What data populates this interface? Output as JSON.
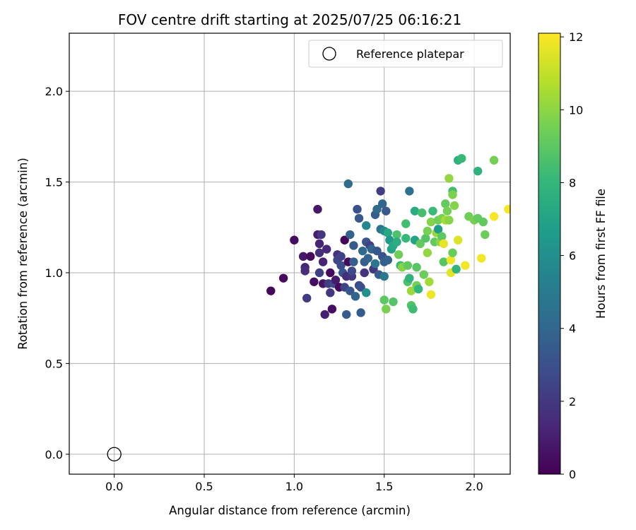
{
  "chart_data": {
    "type": "scatter",
    "title": "FOV centre drift starting at 2025/07/25 06:16:21",
    "xlabel": "Angular distance from reference (arcmin)",
    "ylabel": "Rotation from reference (arcmin)",
    "xlim": [
      -0.25,
      2.2
    ],
    "ylim": [
      -0.11,
      2.32
    ],
    "xticks": [
      0.0,
      0.5,
      1.0,
      1.5,
      2.0
    ],
    "xtick_labels": [
      "0.0",
      "0.5",
      "1.0",
      "1.5",
      "2.0"
    ],
    "yticks": [
      0.0,
      0.5,
      1.0,
      1.5,
      2.0
    ],
    "ytick_labels": [
      "0.0",
      "0.5",
      "1.0",
      "1.5",
      "2.0"
    ],
    "grid": true,
    "legend": {
      "position": "top-right",
      "entries": [
        "Reference platepar"
      ]
    },
    "reference_point": {
      "label": "Reference platepar",
      "x": 0.0,
      "y": 0.0,
      "marker": "open-circle"
    },
    "colorbar": {
      "label": "Hours from first FF file",
      "range": [
        0,
        12.1
      ],
      "ticks": [
        0,
        2,
        4,
        6,
        8,
        10,
        12
      ],
      "tick_labels": [
        "0",
        "2",
        "4",
        "6",
        "8",
        "10",
        "12"
      ],
      "colormap": "viridis",
      "stops": [
        "#440154",
        "#482878",
        "#3e4989",
        "#31688e",
        "#26828e",
        "#1f9e89",
        "#35b779",
        "#6ece58",
        "#b5de2b",
        "#fde725"
      ]
    },
    "points": [
      {
        "x": 0.87,
        "y": 0.9,
        "h": 0.2
      },
      {
        "x": 0.94,
        "y": 0.97,
        "h": 0.3
      },
      {
        "x": 1.0,
        "y": 1.18,
        "h": 0.4
      },
      {
        "x": 1.05,
        "y": 1.09,
        "h": 0.8
      },
      {
        "x": 1.06,
        "y": 1.03,
        "h": 1.3
      },
      {
        "x": 1.06,
        "y": 1.01,
        "h": 1.6
      },
      {
        "x": 1.07,
        "y": 0.86,
        "h": 2.1
      },
      {
        "x": 1.09,
        "y": 1.09,
        "h": 0.3
      },
      {
        "x": 1.11,
        "y": 0.95,
        "h": 0.4
      },
      {
        "x": 1.13,
        "y": 1.35,
        "h": 0.8
      },
      {
        "x": 1.13,
        "y": 1.21,
        "h": 0.9
      },
      {
        "x": 1.14,
        "y": 1.16,
        "h": 1.2
      },
      {
        "x": 1.15,
        "y": 1.21,
        "h": 2.0
      },
      {
        "x": 1.14,
        "y": 1.11,
        "h": 1.6
      },
      {
        "x": 1.14,
        "y": 1.0,
        "h": 2.3
      },
      {
        "x": 1.16,
        "y": 1.06,
        "h": 1.2
      },
      {
        "x": 1.16,
        "y": 0.94,
        "h": 0.7
      },
      {
        "x": 1.17,
        "y": 0.77,
        "h": 1.1
      },
      {
        "x": 1.18,
        "y": 1.13,
        "h": 1.4
      },
      {
        "x": 1.19,
        "y": 0.94,
        "h": 2.2
      },
      {
        "x": 1.2,
        "y": 0.89,
        "h": 1.9
      },
      {
        "x": 1.2,
        "y": 1.0,
        "h": 0.3
      },
      {
        "x": 1.21,
        "y": 0.8,
        "h": 0.4
      },
      {
        "x": 1.22,
        "y": 0.94,
        "h": 2.8
      },
      {
        "x": 1.23,
        "y": 0.96,
        "h": 0.9
      },
      {
        "x": 1.24,
        "y": 1.1,
        "h": 1.7
      },
      {
        "x": 1.24,
        "y": 1.07,
        "h": 2.6
      },
      {
        "x": 1.25,
        "y": 0.92,
        "h": 0.3
      },
      {
        "x": 1.26,
        "y": 1.09,
        "h": 2.4
      },
      {
        "x": 1.26,
        "y": 1.04,
        "h": 2.9
      },
      {
        "x": 1.27,
        "y": 1.0,
        "h": 3.1
      },
      {
        "x": 1.28,
        "y": 1.18,
        "h": 0.2
      },
      {
        "x": 1.28,
        "y": 0.92,
        "h": 2.5
      },
      {
        "x": 1.29,
        "y": 0.77,
        "h": 3.5
      },
      {
        "x": 1.29,
        "y": 0.98,
        "h": 1.5
      },
      {
        "x": 1.3,
        "y": 1.49,
        "h": 4.3
      },
      {
        "x": 1.3,
        "y": 1.06,
        "h": 0.3
      },
      {
        "x": 1.31,
        "y": 1.21,
        "h": 3.8
      },
      {
        "x": 1.31,
        "y": 0.9,
        "h": 3.2
      },
      {
        "x": 1.32,
        "y": 0.98,
        "h": 2.0
      },
      {
        "x": 1.32,
        "y": 1.01,
        "h": 2.7
      },
      {
        "x": 1.33,
        "y": 1.15,
        "h": 3.4
      },
      {
        "x": 1.33,
        "y": 1.06,
        "h": 3.6
      },
      {
        "x": 1.34,
        "y": 0.87,
        "h": 3.9
      },
      {
        "x": 1.35,
        "y": 1.35,
        "h": 3.1
      },
      {
        "x": 1.36,
        "y": 0.93,
        "h": 2.6
      },
      {
        "x": 1.36,
        "y": 1.3,
        "h": 3.3
      },
      {
        "x": 1.37,
        "y": 0.78,
        "h": 3.5
      },
      {
        "x": 1.37,
        "y": 0.92,
        "h": 3.0
      },
      {
        "x": 1.38,
        "y": 1.12,
        "h": 4.1
      },
      {
        "x": 1.39,
        "y": 1.0,
        "h": 1.8
      },
      {
        "x": 1.39,
        "y": 1.06,
        "h": 3.6
      },
      {
        "x": 1.4,
        "y": 1.26,
        "h": 5.6
      },
      {
        "x": 1.4,
        "y": 1.17,
        "h": 3.2
      },
      {
        "x": 1.4,
        "y": 0.89,
        "h": 6.1
      },
      {
        "x": 1.41,
        "y": 1.08,
        "h": 3.8
      },
      {
        "x": 1.42,
        "y": 1.15,
        "h": 2.4
      },
      {
        "x": 1.43,
        "y": 1.13,
        "h": 4.0
      },
      {
        "x": 1.44,
        "y": 1.02,
        "h": 1.9
      },
      {
        "x": 1.45,
        "y": 1.05,
        "h": 4.7
      },
      {
        "x": 1.45,
        "y": 1.32,
        "h": 3.7
      },
      {
        "x": 1.46,
        "y": 1.35,
        "h": 4.2
      },
      {
        "x": 1.46,
        "y": 1.12,
        "h": 3.3
      },
      {
        "x": 1.47,
        "y": 0.99,
        "h": 3.5
      },
      {
        "x": 1.48,
        "y": 1.45,
        "h": 2.2
      },
      {
        "x": 1.48,
        "y": 1.24,
        "h": 4.6
      },
      {
        "x": 1.49,
        "y": 1.09,
        "h": 3.1
      },
      {
        "x": 1.49,
        "y": 1.38,
        "h": 3.9
      },
      {
        "x": 1.5,
        "y": 1.23,
        "h": 5.8
      },
      {
        "x": 1.5,
        "y": 0.98,
        "h": 4.8
      },
      {
        "x": 1.5,
        "y": 1.06,
        "h": 3.6
      },
      {
        "x": 1.51,
        "y": 1.34,
        "h": 3.4
      },
      {
        "x": 1.52,
        "y": 1.07,
        "h": 3.8
      },
      {
        "x": 1.52,
        "y": 1.22,
        "h": 7.2
      },
      {
        "x": 1.53,
        "y": 1.18,
        "h": 6.5
      },
      {
        "x": 1.54,
        "y": 1.13,
        "h": 6.9
      },
      {
        "x": 1.55,
        "y": 1.15,
        "h": 7.3
      },
      {
        "x": 1.5,
        "y": 0.85,
        "h": 9.0
      },
      {
        "x": 1.51,
        "y": 0.8,
        "h": 9.6
      },
      {
        "x": 1.55,
        "y": 0.84,
        "h": 8.8
      },
      {
        "x": 1.57,
        "y": 1.21,
        "h": 8.6
      },
      {
        "x": 1.57,
        "y": 1.17,
        "h": 7.6
      },
      {
        "x": 1.58,
        "y": 1.1,
        "h": 9.4
      },
      {
        "x": 1.59,
        "y": 1.04,
        "h": 8.2
      },
      {
        "x": 1.6,
        "y": 1.03,
        "h": 9.9
      },
      {
        "x": 1.62,
        "y": 1.27,
        "h": 8.4
      },
      {
        "x": 1.62,
        "y": 1.19,
        "h": 8.1
      },
      {
        "x": 1.63,
        "y": 0.95,
        "h": 8.6
      },
      {
        "x": 1.63,
        "y": 1.04,
        "h": 9.1
      },
      {
        "x": 1.64,
        "y": 1.45,
        "h": 4.5
      },
      {
        "x": 1.64,
        "y": 0.97,
        "h": 7.8
      },
      {
        "x": 1.65,
        "y": 0.9,
        "h": 10.3
      },
      {
        "x": 1.65,
        "y": 0.82,
        "h": 8.7
      },
      {
        "x": 1.66,
        "y": 0.8,
        "h": 8.3
      },
      {
        "x": 1.67,
        "y": 1.34,
        "h": 7.4
      },
      {
        "x": 1.67,
        "y": 1.18,
        "h": 7.0
      },
      {
        "x": 1.68,
        "y": 1.03,
        "h": 8.9
      },
      {
        "x": 1.68,
        "y": 0.93,
        "h": 9.5
      },
      {
        "x": 1.69,
        "y": 0.91,
        "h": 8.0
      },
      {
        "x": 1.7,
        "y": 1.16,
        "h": 9.2
      },
      {
        "x": 1.71,
        "y": 1.33,
        "h": 8.5
      },
      {
        "x": 1.72,
        "y": 0.99,
        "h": 9.3
      },
      {
        "x": 1.73,
        "y": 1.19,
        "h": 8.8
      },
      {
        "x": 1.74,
        "y": 1.23,
        "h": 9.6
      },
      {
        "x": 1.74,
        "y": 1.11,
        "h": 10.1
      },
      {
        "x": 1.75,
        "y": 0.95,
        "h": 10.4
      },
      {
        "x": 1.76,
        "y": 0.88,
        "h": 11.8
      },
      {
        "x": 1.76,
        "y": 1.28,
        "h": 9.8
      },
      {
        "x": 1.77,
        "y": 1.34,
        "h": 8.2
      },
      {
        "x": 1.78,
        "y": 1.17,
        "h": 9.1
      },
      {
        "x": 1.79,
        "y": 1.22,
        "h": 10.2
      },
      {
        "x": 1.8,
        "y": 1.24,
        "h": 6.6
      },
      {
        "x": 1.8,
        "y": 1.29,
        "h": 9.4
      },
      {
        "x": 1.81,
        "y": 1.17,
        "h": 10.0
      },
      {
        "x": 1.82,
        "y": 1.3,
        "h": 9.6
      },
      {
        "x": 1.82,
        "y": 1.2,
        "h": 9.0
      },
      {
        "x": 1.83,
        "y": 1.06,
        "h": 8.9
      },
      {
        "x": 1.83,
        "y": 1.16,
        "h": 11.7
      },
      {
        "x": 1.84,
        "y": 1.38,
        "h": 9.2
      },
      {
        "x": 1.84,
        "y": 1.29,
        "h": 10.5
      },
      {
        "x": 1.85,
        "y": 1.34,
        "h": 9.5
      },
      {
        "x": 1.86,
        "y": 1.52,
        "h": 10.1
      },
      {
        "x": 1.86,
        "y": 1.29,
        "h": 9.9
      },
      {
        "x": 1.87,
        "y": 1.07,
        "h": 11.9
      },
      {
        "x": 1.87,
        "y": 1.0,
        "h": 11.6
      },
      {
        "x": 1.88,
        "y": 1.45,
        "h": 8.4
      },
      {
        "x": 1.88,
        "y": 1.43,
        "h": 9.7
      },
      {
        "x": 1.88,
        "y": 1.11,
        "h": 9.3
      },
      {
        "x": 1.89,
        "y": 1.37,
        "h": 9.8
      },
      {
        "x": 1.9,
        "y": 1.02,
        "h": 7.9
      },
      {
        "x": 1.91,
        "y": 1.62,
        "h": 7.7
      },
      {
        "x": 1.91,
        "y": 1.18,
        "h": 11.5
      },
      {
        "x": 1.93,
        "y": 1.63,
        "h": 8.1
      },
      {
        "x": 1.95,
        "y": 1.04,
        "h": 11.9
      },
      {
        "x": 1.97,
        "y": 1.31,
        "h": 9.4
      },
      {
        "x": 2.0,
        "y": 1.29,
        "h": 9.6
      },
      {
        "x": 2.02,
        "y": 1.56,
        "h": 7.8
      },
      {
        "x": 2.02,
        "y": 1.3,
        "h": 9.2
      },
      {
        "x": 2.04,
        "y": 1.08,
        "h": 11.9
      },
      {
        "x": 2.05,
        "y": 1.28,
        "h": 9.1
      },
      {
        "x": 2.06,
        "y": 1.21,
        "h": 9.3
      },
      {
        "x": 2.11,
        "y": 1.62,
        "h": 9.5
      },
      {
        "x": 2.11,
        "y": 1.31,
        "h": 12.0
      },
      {
        "x": 2.19,
        "y": 1.35,
        "h": 12.0
      }
    ]
  }
}
